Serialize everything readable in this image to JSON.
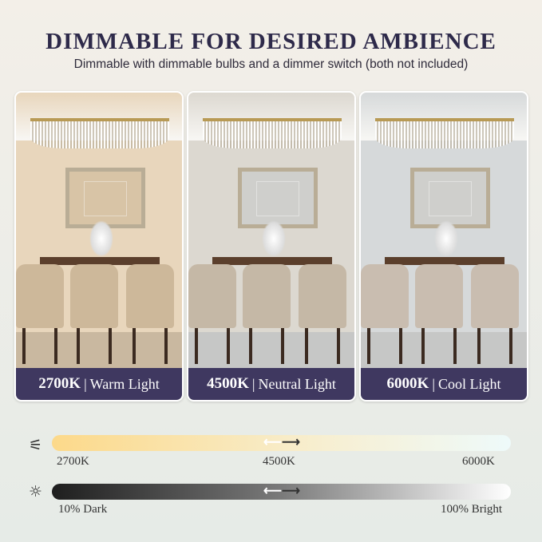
{
  "header": {
    "title": "DIMMABLE FOR DESIRED AMBIENCE",
    "subtitle": "Dimmable with dimmable bulbs and a dimmer switch (both not included)"
  },
  "panels": [
    {
      "temp": "2700K",
      "separator": "|",
      "name": "Warm Light",
      "tint": "#e8d6bc"
    },
    {
      "temp": "4500K",
      "separator": "|",
      "name": "Neutral Light",
      "tint": "#dcd8d0"
    },
    {
      "temp": "6000K",
      "separator": "|",
      "name": "Cool Light",
      "tint": "#d6d9da"
    }
  ],
  "color_temp_bar": {
    "icon": "sliders-icon",
    "labels": [
      "2700K",
      "4500K",
      "6000K"
    ],
    "colors": [
      "#fcd98a",
      "#f7efd2",
      "#eefafa"
    ]
  },
  "brightness_bar": {
    "icon": "sun-icon",
    "min_label": "10% Dark",
    "max_label": "100% Bright",
    "colors": [
      "#1e1e1e",
      "#ffffff"
    ]
  },
  "arrows": {
    "left": "⟵",
    "right": "⟶"
  }
}
